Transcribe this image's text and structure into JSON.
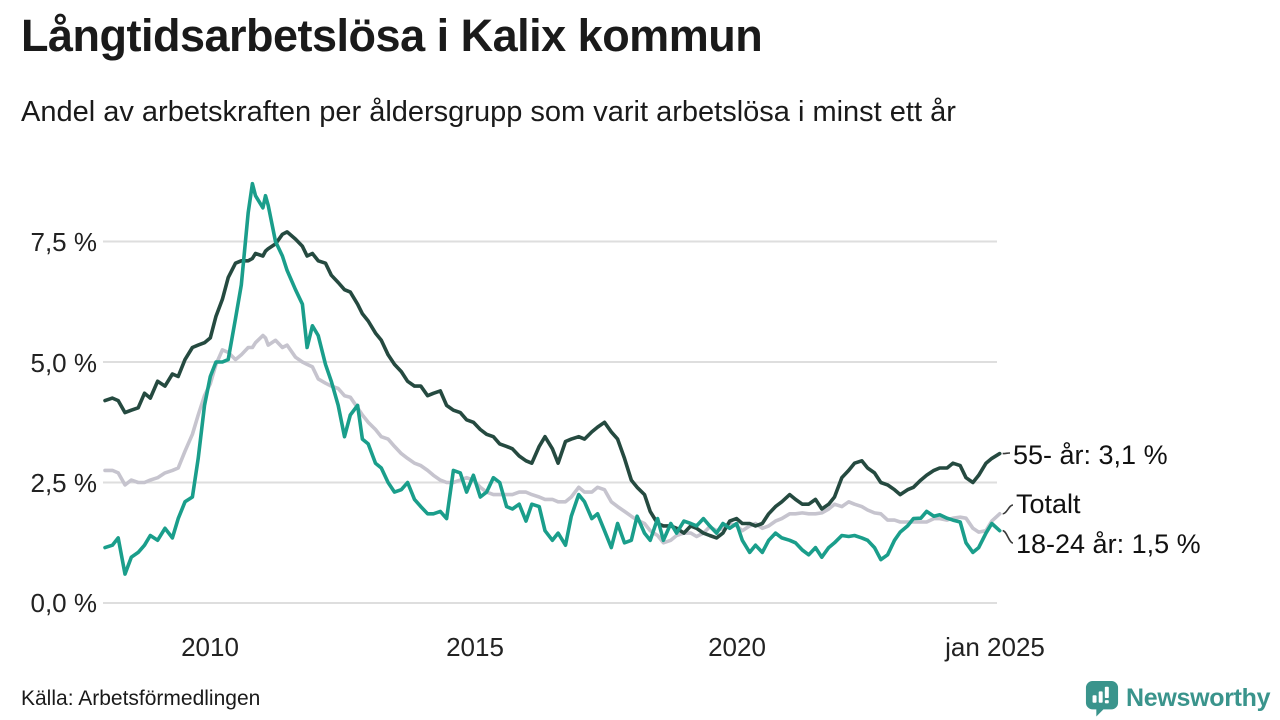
{
  "header": {
    "title": "Långtidsarbetslösa i Kalix kommun",
    "subtitle": "Andel av arbetskraften per åldersgrupp som varit arbetslösa i minst ett år"
  },
  "footer": {
    "source": "Källa: Arbetsförmedlingen",
    "brand": "Newsworthy"
  },
  "colors": {
    "series_55": "#254a40",
    "series_total": "#c6c4ce",
    "series_1824": "#1a9e8b",
    "gridline": "#dedede",
    "connector": "#3a3a3a",
    "brand_teal": "#3a948c"
  },
  "chart_data": {
    "type": "line",
    "title": "Långtidsarbetslösa i Kalix kommun",
    "subtitle": "Andel av arbetskraften per åldersgrupp som varit arbetslösa i minst ett år",
    "xlabel": "",
    "ylabel": "",
    "grid": true,
    "legend_position": "end-of-line labels, right side",
    "xlim": [
      2008,
      2025
    ],
    "ylim": [
      0,
      9.3
    ],
    "yticks": [
      {
        "value": 7.5,
        "label": "7,5 %"
      },
      {
        "value": 5.0,
        "label": "5,0 %"
      },
      {
        "value": 2.5,
        "label": "2,5 %"
      },
      {
        "value": 0.0,
        "label": "0,0 %"
      }
    ],
    "xticks": [
      {
        "value": 2010,
        "label": "2010"
      },
      {
        "value": 2015,
        "label": "2015"
      },
      {
        "value": 2020,
        "label": "2020"
      },
      {
        "value": 2025,
        "label": "jan 2025"
      }
    ],
    "x_unit": "decimal year (monthly series 2008–jan 2025)",
    "x": [
      2008.0,
      2008.14,
      2008.25,
      2008.38,
      2008.5,
      2008.63,
      2008.75,
      2008.86,
      2009.0,
      2009.14,
      2009.28,
      2009.39,
      2009.52,
      2009.66,
      2009.77,
      2009.89,
      2010.0,
      2010.11,
      2010.23,
      2010.34,
      2010.48,
      2010.59,
      2010.72,
      2010.8,
      2010.86,
      2011.0,
      2011.05,
      2011.1,
      2011.24,
      2011.37,
      2011.46,
      2011.62,
      2011.75,
      2011.84,
      2011.94,
      2012.05,
      2012.19,
      2012.3,
      2012.43,
      2012.55,
      2012.66,
      2012.8,
      2012.89,
      2013.0,
      2013.14,
      2013.25,
      2013.38,
      2013.5,
      2013.63,
      2013.75,
      2013.88,
      2014.0,
      2014.13,
      2014.24,
      2014.37,
      2014.49,
      2014.62,
      2014.75,
      2014.87,
      2015.0,
      2015.13,
      2015.25,
      2015.38,
      2015.5,
      2015.63,
      2015.74,
      2015.87,
      2016.0,
      2016.11,
      2016.25,
      2016.36,
      2016.5,
      2016.61,
      2016.75,
      2016.86,
      2017.0,
      2017.11,
      2017.25,
      2017.36,
      2017.49,
      2017.62,
      2017.74,
      2017.87,
      2018.0,
      2018.11,
      2018.25,
      2018.36,
      2018.5,
      2018.61,
      2018.75,
      2018.86,
      2019.0,
      2019.13,
      2019.24,
      2019.37,
      2019.49,
      2019.62,
      2019.74,
      2019.87,
      2020.0,
      2020.11,
      2020.25,
      2020.36,
      2020.49,
      2020.61,
      2020.74,
      2020.86,
      2021.01,
      2021.12,
      2021.25,
      2021.37,
      2021.5,
      2021.62,
      2021.75,
      2021.86,
      2022.0,
      2022.13,
      2022.24,
      2022.38,
      2022.49,
      2022.62,
      2022.74,
      2022.87,
      2023.0,
      2023.11,
      2023.25,
      2023.36,
      2023.5,
      2023.61,
      2023.75,
      2023.86,
      2024.0,
      2024.11,
      2024.25,
      2024.36,
      2024.49,
      2024.6,
      2024.74,
      2024.85,
      2025.0
    ],
    "series": [
      {
        "name": "55- år",
        "end_label": "55- år: 3,1 %",
        "last_value": "3,1 %",
        "color": "#254a40",
        "values": [
          4.2,
          4.25,
          4.2,
          3.95,
          4.0,
          4.05,
          4.35,
          4.25,
          4.6,
          4.5,
          4.75,
          4.7,
          5.05,
          5.3,
          5.35,
          5.4,
          5.5,
          5.95,
          6.3,
          6.75,
          7.05,
          7.1,
          7.1,
          7.15,
          7.25,
          7.2,
          7.3,
          7.35,
          7.45,
          7.65,
          7.7,
          7.55,
          7.4,
          7.2,
          7.25,
          7.1,
          7.05,
          6.8,
          6.65,
          6.5,
          6.45,
          6.2,
          6.0,
          5.85,
          5.6,
          5.45,
          5.15,
          4.95,
          4.8,
          4.6,
          4.5,
          4.5,
          4.3,
          4.35,
          4.4,
          4.1,
          4.0,
          3.95,
          3.8,
          3.75,
          3.6,
          3.5,
          3.45,
          3.3,
          3.25,
          3.2,
          3.05,
          2.95,
          2.9,
          3.25,
          3.45,
          3.2,
          2.9,
          3.35,
          3.4,
          3.45,
          3.4,
          3.55,
          3.65,
          3.75,
          3.55,
          3.4,
          3.0,
          2.55,
          2.4,
          2.25,
          1.9,
          1.65,
          1.6,
          1.6,
          1.55,
          1.45,
          1.6,
          1.55,
          1.45,
          1.4,
          1.35,
          1.45,
          1.7,
          1.75,
          1.65,
          1.65,
          1.6,
          1.65,
          1.85,
          2.0,
          2.1,
          2.25,
          2.15,
          2.05,
          2.05,
          2.15,
          1.95,
          2.05,
          2.2,
          2.6,
          2.75,
          2.9,
          2.95,
          2.8,
          2.7,
          2.5,
          2.45,
          2.35,
          2.25,
          2.35,
          2.4,
          2.55,
          2.65,
          2.75,
          2.8,
          2.8,
          2.9,
          2.85,
          2.6,
          2.5,
          2.65,
          2.9,
          3.0,
          3.1
        ]
      },
      {
        "name": "Totalt",
        "end_label": "Totalt",
        "last_value": "1,85 %",
        "color": "#c6c4ce",
        "values": [
          2.75,
          2.75,
          2.7,
          2.45,
          2.55,
          2.5,
          2.5,
          2.55,
          2.6,
          2.7,
          2.75,
          2.8,
          3.15,
          3.5,
          3.9,
          4.3,
          4.55,
          4.95,
          5.25,
          5.2,
          5.05,
          5.15,
          5.3,
          5.3,
          5.4,
          5.55,
          5.5,
          5.35,
          5.45,
          5.3,
          5.35,
          5.1,
          5.0,
          4.95,
          4.9,
          4.65,
          4.56,
          4.5,
          4.45,
          4.3,
          4.27,
          4.05,
          3.9,
          3.75,
          3.6,
          3.45,
          3.4,
          3.25,
          3.1,
          3.0,
          2.9,
          2.85,
          2.75,
          2.65,
          2.55,
          2.5,
          2.5,
          2.55,
          2.6,
          2.55,
          2.4,
          2.3,
          2.25,
          2.25,
          2.25,
          2.25,
          2.3,
          2.3,
          2.25,
          2.2,
          2.15,
          2.15,
          2.1,
          2.1,
          2.2,
          2.4,
          2.3,
          2.3,
          2.4,
          2.35,
          2.1,
          2.0,
          1.9,
          1.8,
          1.72,
          1.65,
          1.5,
          1.4,
          1.25,
          1.3,
          1.4,
          1.45,
          1.45,
          1.38,
          1.45,
          1.58,
          1.5,
          1.55,
          1.65,
          1.6,
          1.5,
          1.6,
          1.65,
          1.55,
          1.6,
          1.7,
          1.75,
          1.85,
          1.85,
          1.87,
          1.85,
          1.85,
          1.87,
          1.95,
          2.05,
          2.0,
          2.1,
          2.05,
          2.0,
          1.93,
          1.87,
          1.85,
          1.72,
          1.72,
          1.68,
          1.68,
          1.68,
          1.68,
          1.68,
          1.75,
          1.75,
          1.72,
          1.76,
          1.78,
          1.76,
          1.55,
          1.47,
          1.5,
          1.7,
          1.85
        ]
      },
      {
        "name": "18-24 år",
        "end_label": "18-24 år: 1,5 %",
        "last_value": "1,5 %",
        "color": "#1a9e8b",
        "values": [
          1.15,
          1.2,
          1.35,
          0.6,
          0.95,
          1.05,
          1.2,
          1.4,
          1.3,
          1.55,
          1.35,
          1.75,
          2.1,
          2.2,
          3.0,
          4.1,
          4.7,
          5.0,
          5.0,
          5.05,
          5.9,
          6.6,
          8.1,
          8.7,
          8.45,
          8.2,
          8.45,
          8.25,
          7.5,
          7.2,
          6.9,
          6.5,
          6.2,
          5.3,
          5.75,
          5.55,
          4.95,
          4.6,
          4.1,
          3.45,
          3.9,
          4.1,
          3.4,
          3.3,
          2.9,
          2.8,
          2.5,
          2.3,
          2.35,
          2.5,
          2.15,
          2.0,
          1.85,
          1.85,
          1.9,
          1.75,
          2.75,
          2.7,
          2.3,
          2.65,
          2.2,
          2.3,
          2.6,
          2.5,
          2.0,
          1.95,
          2.05,
          1.7,
          2.05,
          2.0,
          1.5,
          1.3,
          1.45,
          1.2,
          1.8,
          2.25,
          2.1,
          1.75,
          1.85,
          1.5,
          1.15,
          1.65,
          1.25,
          1.3,
          1.8,
          1.45,
          1.3,
          1.75,
          1.3,
          1.65,
          1.45,
          1.7,
          1.65,
          1.6,
          1.75,
          1.6,
          1.45,
          1.65,
          1.55,
          1.65,
          1.3,
          1.05,
          1.2,
          1.05,
          1.3,
          1.45,
          1.35,
          1.3,
          1.25,
          1.1,
          1.0,
          1.15,
          0.95,
          1.15,
          1.25,
          1.4,
          1.38,
          1.4,
          1.35,
          1.3,
          1.15,
          0.9,
          1.0,
          1.3,
          1.47,
          1.6,
          1.75,
          1.76,
          1.9,
          1.8,
          1.83,
          1.76,
          1.72,
          1.68,
          1.25,
          1.05,
          1.15,
          1.45,
          1.65,
          1.5
        ]
      }
    ]
  }
}
